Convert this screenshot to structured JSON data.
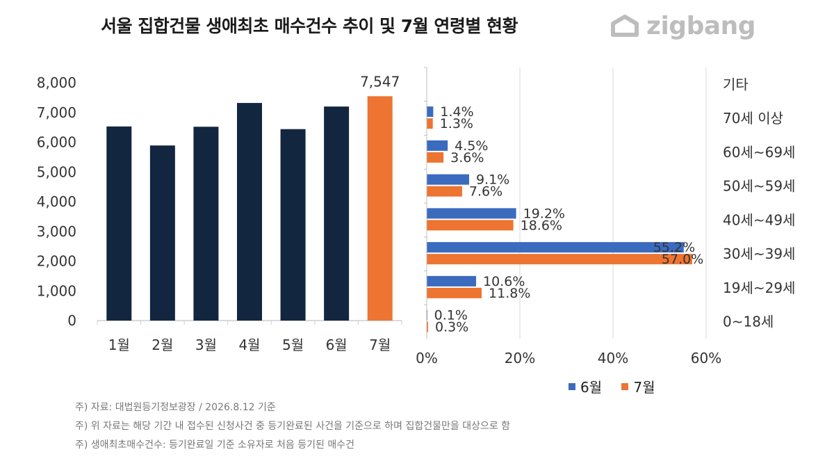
{
  "title": "서울 집합건물 생애최초 매수건수 추이 및 7월 연령별 현황",
  "logo": {
    "text": "zigbang",
    "icon": "zigbang-house-icon"
  },
  "colors": {
    "navy": "#12263f",
    "orange": "#ed7431",
    "blue": "#3a6bbf"
  },
  "chart_data": [
    {
      "type": "bar",
      "categories": [
        "1월",
        "2월",
        "3월",
        "4월",
        "5월",
        "6월",
        "7월"
      ],
      "values": [
        6530,
        5890,
        6520,
        7320,
        6440,
        7200,
        7547
      ],
      "highlight_index": 6,
      "data_labels": [
        "",
        "",
        "",
        "",
        "",
        "",
        "7,547"
      ],
      "yticks": [
        "0",
        "1,000",
        "2,000",
        "3,000",
        "4,000",
        "5,000",
        "6,000",
        "7,000",
        "8,000"
      ],
      "ylim": [
        0,
        8000
      ],
      "grid": false
    },
    {
      "type": "bar",
      "orientation": "horizontal",
      "categories": [
        "기타",
        "70세 이상",
        "60세~69세",
        "50세~59세",
        "40세~49세",
        "30세~39세",
        "19세~29세",
        "0~18세"
      ],
      "series": [
        {
          "name": "6월",
          "values": [
            null,
            1.4,
            4.5,
            9.1,
            19.2,
            55.2,
            10.6,
            0.1
          ],
          "labels": [
            "",
            "1.4%",
            "4.5%",
            "9.1%",
            "19.2%",
            "55.2%",
            "10.6%",
            "0.1%"
          ]
        },
        {
          "name": "7월",
          "values": [
            null,
            1.3,
            3.6,
            7.6,
            18.6,
            57.0,
            11.8,
            0.3
          ],
          "labels": [
            "",
            "1.3%",
            "3.6%",
            "7.6%",
            "18.6%",
            "57.0%",
            "11.8%",
            "0.3%"
          ]
        }
      ],
      "xticks": [
        "0%",
        "20%",
        "40%",
        "60%"
      ],
      "xlim": [
        0,
        60
      ],
      "grid": true,
      "legend_position": "bottom"
    }
  ],
  "legend": [
    {
      "label": "6월"
    },
    {
      "label": "7월"
    }
  ],
  "notes": [
    "주) 자료: 대법원등기정보광장 / 2026.8.12 기준",
    "주) 위 자료는 해당 기간 내 접수된 신청사건 중 등기완료된 사건을 기준으로 하며 집합건물만을 대상으로 함",
    "주) 생애최초매수건수: 등기완료일 기준 소유자로 처음 등기된 매수건"
  ]
}
